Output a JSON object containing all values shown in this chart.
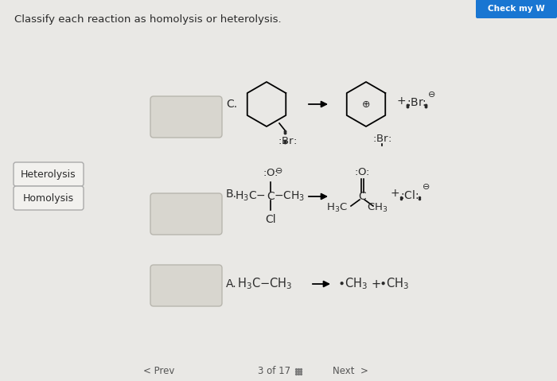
{
  "title": "Classify each reaction as homolysis or heterolysis.",
  "bg_color": "#e9e8e5",
  "box_color": "#d8d6cf",
  "box_border": "#b8b6ae",
  "button_bg": "#f2f1ee",
  "button_border": "#aaaaaa",
  "text_color": "#2a2a2a",
  "check_btn_color": "#1976D2",
  "footer_text": "3 of 17",
  "label_heterolysis": "Heterolysis",
  "label_homolysis": "Homolysis"
}
